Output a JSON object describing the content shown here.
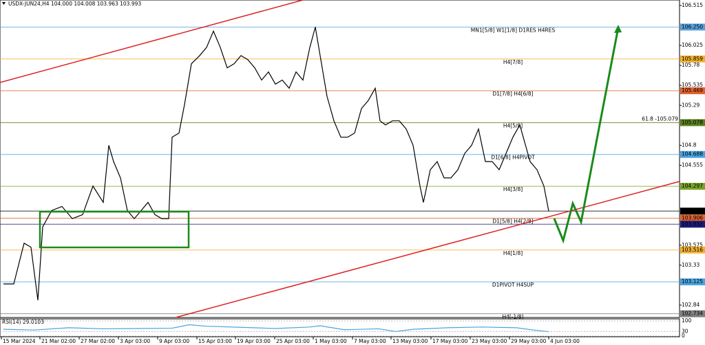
{
  "chart_data": {
    "type": "line",
    "title": "USDX-JUN24,H4  104.000 104.008 103.963 103.993",
    "xlim": [
      0,
      197.4
    ],
    "ylim": [
      102.688,
      106.582
    ],
    "xticks": [
      {
        "value": 0.4,
        "label": "15 Mar 2024"
      },
      {
        "value": 11.6,
        "label": "21 Mar 02:00"
      },
      {
        "value": 23,
        "label": "27 Mar 02:00"
      },
      {
        "value": 34.4,
        "label": "3 Apr 03:00"
      },
      {
        "value": 45.8,
        "label": "9 Apr 03:00"
      },
      {
        "value": 57.2,
        "label": "15 Apr 03:00"
      },
      {
        "value": 68.4,
        "label": "19 Apr 03:00"
      },
      {
        "value": 79.8,
        "label": "25 Apr 03:00"
      },
      {
        "value": 91,
        "label": "1 May 03:00"
      },
      {
        "value": 102.4,
        "label": "7 May 03:00"
      },
      {
        "value": 113.6,
        "label": "13 May 03:00"
      },
      {
        "value": 125.2,
        "label": "17 May 03:00"
      },
      {
        "value": 136.6,
        "label": "23 May 03:00"
      },
      {
        "value": 148,
        "label": "29 May 03:00"
      },
      {
        "value": 159.4,
        "label": "4 Jun 03:00"
      }
    ],
    "yticks": [
      106.515,
      106.025,
      105.78,
      105.535,
      105.29,
      104.8,
      104.555,
      103.575,
      103.33,
      102.84
    ],
    "series": [
      {
        "name": "USDX-JUN24,H4",
        "color": "#000000",
        "x": [
          1,
          4,
          7,
          9,
          11,
          12.4,
          15,
          18,
          21,
          24,
          27,
          30,
          31.6,
          33,
          35,
          37,
          39,
          41,
          43,
          45,
          47,
          49,
          50,
          52,
          53.6,
          55.6,
          58,
          60,
          62,
          64,
          66,
          68,
          70,
          72,
          74,
          76,
          78,
          80,
          82,
          84,
          86,
          88,
          90,
          91.6,
          93,
          95,
          97,
          99,
          101,
          103,
          105,
          107,
          109,
          110.4,
          112,
          114,
          116,
          118,
          120,
          122,
          123,
          125,
          127,
          129,
          131,
          133,
          135,
          137,
          139,
          141,
          143,
          145,
          147,
          149,
          151,
          152,
          154,
          156,
          158,
          159.4
        ],
        "values": [
          103.1,
          103.1,
          103.6,
          103.55,
          102.9,
          103.8,
          104.0,
          104.05,
          103.9,
          103.95,
          104.3,
          104.1,
          104.8,
          104.6,
          104.4,
          104.0,
          103.9,
          104.0,
          104.1,
          103.95,
          103.9,
          103.9,
          104.9,
          104.95,
          105.3,
          105.8,
          105.9,
          106.0,
          106.2,
          106.0,
          105.75,
          105.8,
          105.9,
          105.85,
          105.75,
          105.6,
          105.7,
          105.55,
          105.6,
          105.5,
          105.7,
          105.6,
          106.0,
          106.25,
          105.9,
          105.4,
          105.1,
          104.9,
          104.9,
          104.95,
          105.25,
          105.35,
          105.5,
          105.1,
          105.05,
          105.1,
          105.1,
          105.0,
          104.8,
          104.3,
          104.1,
          104.5,
          104.6,
          104.4,
          104.4,
          104.5,
          104.7,
          104.8,
          105.0,
          104.6,
          104.6,
          104.5,
          104.7,
          104.9,
          105.05,
          104.9,
          104.6,
          104.5,
          104.3,
          103.993
        ]
      }
    ],
    "levels": [
      {
        "name": "MN1[5/8] W1[1/8] D1RES H4RES",
        "value": 106.25,
        "value_label": "106.250",
        "color": "#5aa0d8"
      },
      {
        "name": "H4[7/8]",
        "value": 105.859,
        "value_label": "105.859",
        "color": "#f0b030"
      },
      {
        "name": "D1[7/8] H4[6/8]",
        "value": 105.469,
        "value_label": "105.469",
        "color": "#e0622f"
      },
      {
        "name": "H4[5/8]",
        "value": 105.078,
        "value_label": "105.078",
        "color": "#5a7f1e"
      },
      {
        "name": "D1[6/8] H4PIVOT",
        "value": 104.688,
        "value_label": "104.688",
        "color": "#4aa3df"
      },
      {
        "name": "H4[3/8]",
        "value": 104.297,
        "value_label": "104.297",
        "color": "#7aa32a"
      },
      {
        "value": 103.993,
        "value_label": "103.993",
        "color": "#000000"
      },
      {
        "name": "D1[5/8] H4[2/8]",
        "value": 103.906,
        "value_label": "103.906",
        "color": "#e0622f"
      },
      {
        "value": 103.832,
        "value_label": "103.832",
        "color": "#1c1c7a"
      },
      {
        "name": "H4[1/8]",
        "value": 103.516,
        "value_label": "103.516",
        "color": "#f0b030"
      },
      {
        "name": "D1PIVOT H4SUP",
        "value": 103.125,
        "value_label": "103.125",
        "color": "#4aa3df"
      },
      {
        "name": "H4[-1/8]",
        "value": 102.734,
        "value_label": "102.734",
        "color": "#808080"
      }
    ],
    "fib_label": "61.8 -105.079",
    "rsi": {
      "label": "RSI(14) 29.0103",
      "ylim": [
        0,
        100
      ],
      "yticks": [
        100,
        30,
        0
      ],
      "color": "#4aa3df",
      "x": [
        1,
        10,
        20,
        30,
        40,
        50,
        55,
        60,
        70,
        80,
        90,
        93,
        100,
        110,
        115,
        120,
        130,
        140,
        150,
        155,
        159.4
      ],
      "values": [
        45,
        40,
        55,
        48,
        50,
        52,
        75,
        65,
        58,
        50,
        60,
        68,
        42,
        48,
        30,
        45,
        55,
        60,
        55,
        40,
        29.0103
      ]
    }
  }
}
